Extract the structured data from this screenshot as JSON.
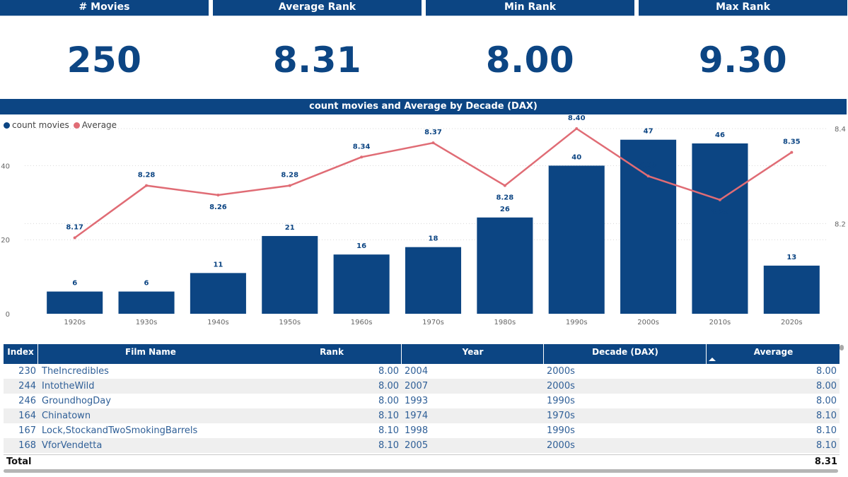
{
  "kpis": [
    {
      "label": "# Movies",
      "value": "250"
    },
    {
      "label": "Average Rank",
      "value": "8.31"
    },
    {
      "label": "Min Rank",
      "value": "8.00"
    },
    {
      "label": "Max Rank",
      "value": "9.30"
    }
  ],
  "colors": {
    "bar": "#0c4583",
    "line": "#e06c75",
    "header": "#0c4583"
  },
  "chart_data": {
    "type": "bar",
    "title": "count movies and Average by Decade (DAX)",
    "categories": [
      "1920s",
      "1930s",
      "1940s",
      "1950s",
      "1960s",
      "1970s",
      "1980s",
      "1990s",
      "2000s",
      "2010s",
      "2020s"
    ],
    "series": [
      {
        "name": "count movies",
        "axis": "left",
        "type": "bar",
        "values": [
          6,
          6,
          11,
          21,
          16,
          18,
          26,
          40,
          47,
          46,
          13
        ]
      },
      {
        "name": "Average",
        "axis": "right",
        "type": "line",
        "values": [
          8.17,
          8.28,
          8.26,
          8.28,
          8.34,
          8.37,
          8.28,
          8.4,
          8.3,
          8.25,
          8.35
        ]
      }
    ],
    "y_left_ticks": [
      "0",
      "20",
      "40"
    ],
    "y_left_range": [
      0,
      50
    ],
    "y_right_ticks": [
      "8.2",
      "8.4"
    ],
    "y_right_range": [
      8.01,
      8.4
    ],
    "legend": "top-left"
  },
  "table": {
    "headers": {
      "index": "Index",
      "film": "Film Name",
      "rank": "Rank",
      "year": "Year",
      "decade": "Decade (DAX)",
      "average": "Average"
    },
    "rows": [
      {
        "index": "230",
        "film": "TheIncredibles",
        "rank": "8.00",
        "year": "2004",
        "decade": "2000s",
        "average": "8.00"
      },
      {
        "index": "244",
        "film": "IntotheWild",
        "rank": "8.00",
        "year": "2007",
        "decade": "2000s",
        "average": "8.00"
      },
      {
        "index": "246",
        "film": "GroundhogDay",
        "rank": "8.00",
        "year": "1993",
        "decade": "1990s",
        "average": "8.00"
      },
      {
        "index": "164",
        "film": "Chinatown",
        "rank": "8.10",
        "year": "1974",
        "decade": "1970s",
        "average": "8.10"
      },
      {
        "index": "167",
        "film": "Lock,StockandTwoSmokingBarrels",
        "rank": "8.10",
        "year": "1998",
        "decade": "1990s",
        "average": "8.10"
      },
      {
        "index": "168",
        "film": "VforVendetta",
        "rank": "8.10",
        "year": "2005",
        "decade": "2000s",
        "average": "8.10"
      }
    ],
    "total_label": "Total",
    "total_average": "8.31"
  }
}
